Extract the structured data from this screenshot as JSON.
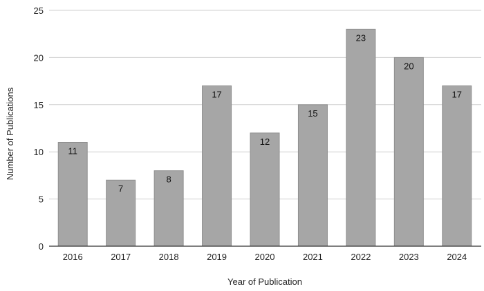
{
  "chart_data": {
    "type": "bar",
    "title": "",
    "xlabel": "Year of Publication",
    "ylabel": "Number of Publications",
    "categories": [
      "2016",
      "2017",
      "2018",
      "2019",
      "2020",
      "2021",
      "2022",
      "2023",
      "2024"
    ],
    "values": [
      11,
      7,
      8,
      17,
      12,
      15,
      23,
      20,
      17
    ],
    "data_labels": [
      "11",
      "7",
      "8",
      "17",
      "12",
      "15",
      "23",
      "20",
      "17"
    ],
    "yticks": [
      0,
      5,
      10,
      15,
      20,
      25
    ],
    "ytick_labels": [
      "0",
      "5",
      "10",
      "15",
      "20",
      "25"
    ],
    "ylim": [
      0,
      25
    ],
    "grid": true,
    "legend": "none",
    "colors": {
      "bar": "#a6a6a6",
      "bar_edge": "#8f8f8f",
      "grid": "#cfcfcf",
      "axis": "#333333",
      "text": "#222222"
    }
  }
}
